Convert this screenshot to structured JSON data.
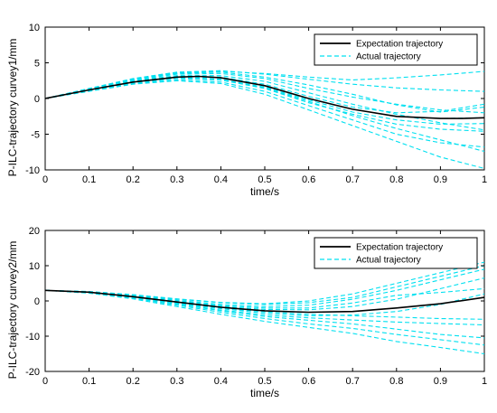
{
  "chart_data": [
    {
      "type": "line",
      "xlabel": "time/s",
      "ylabel": "P-ILC-trajectory curvey1/mm",
      "xlim": [
        0,
        1
      ],
      "ylim": [
        -10,
        10
      ],
      "xticks": [
        "0",
        "0.1",
        "0.2",
        "0.3",
        "0.4",
        "0.5",
        "0.6",
        "0.7",
        "0.8",
        "0.9",
        "1"
      ],
      "yticks": [
        "-10",
        "-5",
        "0",
        "5",
        "10"
      ],
      "legend": {
        "position": "top-right",
        "entries": [
          "Expectation trajectory",
          "Actual trajectory"
        ]
      },
      "series": [
        {
          "name": "Expectation trajectory",
          "style": "solid",
          "color": "#000000",
          "x": [
            0,
            0.1,
            0.2,
            0.3,
            0.35,
            0.4,
            0.5,
            0.6,
            0.7,
            0.8,
            0.9,
            0.95,
            1.0
          ],
          "y": [
            0,
            1.2,
            2.3,
            3.0,
            3.1,
            2.9,
            1.8,
            0.0,
            -1.5,
            -2.5,
            -2.8,
            -2.8,
            -2.7
          ]
        },
        {
          "name": "Actual trajectory",
          "style": "dashed",
          "color": "#00e0f0",
          "x": [
            0,
            0.1,
            0.2,
            0.3,
            0.4,
            0.5,
            0.6,
            0.7,
            0.8,
            0.9,
            1.0
          ],
          "curves": [
            [
              0,
              1.2,
              2.3,
              3.0,
              2.9,
              1.8,
              0.0,
              -1.5,
              -2.5,
              -2.8,
              -2.7
            ],
            [
              0,
              1.3,
              2.6,
              3.4,
              3.5,
              2.8,
              1.4,
              0.2,
              -0.8,
              -1.6,
              -2.0
            ],
            [
              0,
              1.4,
              2.8,
              3.7,
              3.9,
              3.4,
              2.7,
              2.0,
              1.5,
              1.2,
              1.0
            ],
            [
              0,
              1.3,
              2.7,
              3.6,
              3.8,
              3.5,
              3.0,
              2.6,
              2.9,
              3.3,
              3.8
            ],
            [
              0,
              1.2,
              2.2,
              2.8,
              2.6,
              1.4,
              -0.6,
              -2.2,
              -3.6,
              -4.3,
              -4.6
            ],
            [
              0,
              1.1,
              2.1,
              2.6,
              2.3,
              1.0,
              -1.0,
              -3.0,
              -5.0,
              -6.2,
              -6.8
            ],
            [
              0,
              1.0,
              2.0,
              2.5,
              2.1,
              0.6,
              -1.6,
              -3.8,
              -6.0,
              -8.2,
              -9.8
            ],
            [
              0,
              1.1,
              2.2,
              2.9,
              2.6,
              1.5,
              -0.4,
              -2.4,
              -4.2,
              -5.8,
              -7.4
            ],
            [
              0,
              1.3,
              2.5,
              3.2,
              3.2,
              2.4,
              0.8,
              -0.8,
              -2.2,
              -3.4,
              -4.4
            ],
            [
              0,
              1.4,
              2.7,
              3.5,
              3.7,
              3.0,
              1.9,
              0.6,
              -0.9,
              -1.9,
              -1.2
            ],
            [
              0,
              1.2,
              2.4,
              3.1,
              3.0,
              2.0,
              0.3,
              -1.2,
              -2.0,
              -1.8,
              -0.8
            ],
            [
              0,
              1.2,
              2.3,
              2.9,
              2.7,
              1.6,
              -0.2,
              -1.9,
              -3.0,
              -3.6,
              -3.5
            ]
          ]
        }
      ]
    },
    {
      "type": "line",
      "xlabel": "time/s",
      "ylabel": "P-ILC-trajectory curvey2/mm",
      "xlim": [
        0,
        1
      ],
      "ylim": [
        -20,
        20
      ],
      "xticks": [
        "0",
        "0.1",
        "0.2",
        "0.3",
        "0.4",
        "0.5",
        "0.6",
        "0.7",
        "0.8",
        "0.9",
        "1"
      ],
      "yticks": [
        "-20",
        "-10",
        "0",
        "10",
        "20"
      ],
      "legend": {
        "position": "top-right",
        "entries": [
          "Expectation trajectory",
          "Actual trajectory"
        ]
      },
      "series": [
        {
          "name": "Expectation trajectory",
          "style": "solid",
          "color": "#000000",
          "x": [
            0,
            0.1,
            0.2,
            0.3,
            0.4,
            0.5,
            0.6,
            0.7,
            0.8,
            0.9,
            1.0
          ],
          "y": [
            3.0,
            2.5,
            1.2,
            -0.3,
            -1.8,
            -2.8,
            -3.2,
            -3.0,
            -2.0,
            -0.8,
            1.0
          ]
        },
        {
          "name": "Actual trajectory",
          "style": "dashed",
          "color": "#00e0f0",
          "x": [
            0,
            0.1,
            0.2,
            0.3,
            0.4,
            0.5,
            0.6,
            0.7,
            0.8,
            0.9,
            1.0
          ],
          "curves": [
            [
              3.0,
              2.5,
              1.2,
              -0.3,
              -1.8,
              -2.8,
              -3.2,
              -3.0,
              -2.0,
              -0.8,
              1.0
            ],
            [
              3.0,
              2.6,
              1.5,
              0.2,
              -1.0,
              -1.6,
              -1.2,
              0.5,
              3.0,
              6.0,
              9.0
            ],
            [
              3.0,
              2.7,
              1.8,
              0.6,
              -0.4,
              -0.8,
              0.0,
              2.0,
              5.0,
              8.0,
              11.0
            ],
            [
              3.0,
              2.6,
              1.6,
              0.5,
              -0.5,
              -1.0,
              -0.5,
              1.0,
              4.0,
              7.0,
              10.0
            ],
            [
              3.0,
              2.4,
              1.0,
              -0.8,
              -2.6,
              -4.0,
              -4.8,
              -5.4,
              -6.0,
              -6.4,
              -6.8
            ],
            [
              3.0,
              2.3,
              0.8,
              -1.2,
              -3.2,
              -5.0,
              -6.5,
              -7.8,
              -9.5,
              -11.0,
              -12.5
            ],
            [
              3.0,
              2.2,
              0.6,
              -1.6,
              -3.8,
              -5.8,
              -7.5,
              -9.2,
              -11.5,
              -13.2,
              -15.0
            ],
            [
              3.0,
              2.5,
              1.3,
              -0.2,
              -1.6,
              -2.4,
              -2.5,
              -1.6,
              0.5,
              3.5,
              6.5
            ],
            [
              3.0,
              2.5,
              1.1,
              -0.6,
              -2.2,
              -3.5,
              -4.2,
              -4.0,
              -3.0,
              -1.0,
              2.0
            ],
            [
              3.0,
              2.4,
              1.0,
              -0.9,
              -2.8,
              -4.4,
              -5.5,
              -6.5,
              -8.0,
              -9.5,
              -10.5
            ],
            [
              3.0,
              2.6,
              1.4,
              0.0,
              -1.3,
              -2.0,
              -2.0,
              -0.6,
              1.6,
              2.4,
              3.5
            ],
            [
              3.0,
              2.5,
              1.2,
              -0.5,
              -2.0,
              -3.1,
              -3.8,
              -4.2,
              -4.6,
              -5.0,
              -5.2
            ]
          ]
        }
      ]
    }
  ]
}
